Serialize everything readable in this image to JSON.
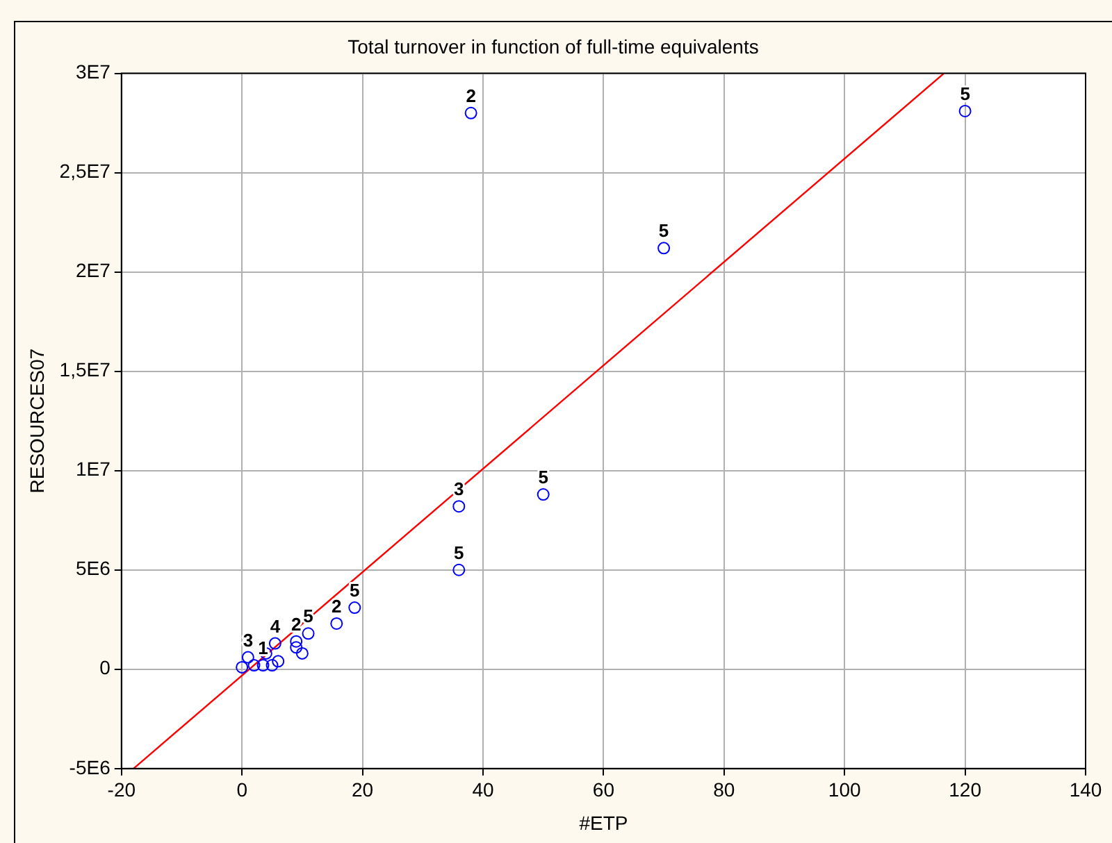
{
  "chart_data": {
    "type": "scatter",
    "title": "Total turnover in function of full-time equivalents",
    "xlabel": "#ETP",
    "ylabel": "RESOURCES07",
    "xlim": [
      -20,
      140
    ],
    "xticks": [
      -20,
      0,
      20,
      40,
      60,
      80,
      100,
      120,
      140
    ],
    "ylim": [
      -5000000,
      30000000
    ],
    "yticks": [
      {
        "value": -5000000,
        "label": "-5E6"
      },
      {
        "value": 0,
        "label": "0"
      },
      {
        "value": 5000000,
        "label": "5E6"
      },
      {
        "value": 10000000,
        "label": "1E7"
      },
      {
        "value": 15000000,
        "label": "1,5E7"
      },
      {
        "value": 20000000,
        "label": "2E7"
      },
      {
        "value": 25000000,
        "label": "2,5E7"
      },
      {
        "value": 30000000,
        "label": "3E7"
      }
    ],
    "grid": true,
    "legend": false,
    "marker": "circle",
    "series": [
      {
        "name": "2",
        "color": "#0000ff",
        "x": [
          38,
          15.7,
          9
        ],
        "values": [
          28000000,
          2300000,
          1400000
        ]
      },
      {
        "name": "5",
        "color": "#0000ff",
        "x": [
          120,
          70,
          50,
          36,
          18.7,
          11
        ],
        "values": [
          28100000,
          21200000,
          8800000,
          5000000,
          3100000,
          1800000
        ]
      },
      {
        "name": "3",
        "color": "#0000ff",
        "x": [
          36,
          1
        ],
        "values": [
          8200000,
          600000
        ]
      },
      {
        "name": "4",
        "color": "#0000ff",
        "x": [
          5.5
        ],
        "values": [
          1300000
        ]
      },
      {
        "name": "1",
        "color": "#0000ff",
        "x": [
          3.5
        ],
        "values": [
          200000
        ]
      },
      {
        "color": "#0000ff",
        "x": [
          9,
          10,
          0,
          2,
          5,
          6,
          4
        ],
        "values": [
          1100000,
          800000,
          100000,
          200000,
          200000,
          400000,
          800000
        ]
      },
      {
        "type": "line",
        "marker": "none",
        "color": "#ff0000",
        "x": [
          -18,
          116.5
        ],
        "values": [
          -5000000,
          30000000
        ]
      }
    ]
  }
}
